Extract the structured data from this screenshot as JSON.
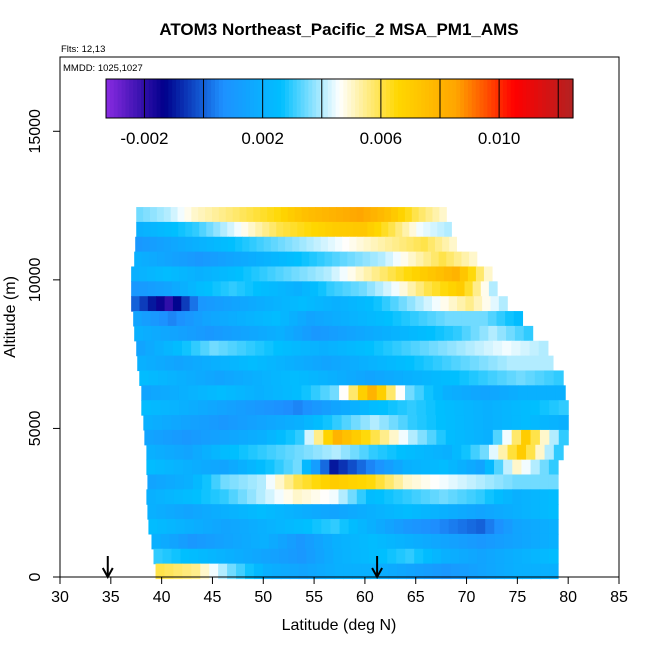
{
  "chart_data": {
    "type": "heatmap",
    "title": "ATOM3 Northeast_Pacific_2 MSA_PM1_AMS",
    "subtitle_flights": "Flts: 12,13",
    "subtitle_dates": "MMDD: 1025,1027",
    "xlabel": "Latitude (deg N)",
    "ylabel": "Altitude (m)",
    "xlim": [
      30,
      85
    ],
    "ylim": [
      0,
      17500
    ],
    "x_ticks": [
      30,
      35,
      40,
      45,
      50,
      55,
      60,
      65,
      70,
      75,
      80,
      85
    ],
    "y_ticks": [
      0,
      5000,
      10000,
      15000
    ],
    "x_tick_labels": [
      "30",
      "35",
      "40",
      "45",
      "50",
      "55",
      "60",
      "65",
      "70",
      "75",
      "80",
      "85"
    ],
    "y_tick_labels": [
      "0",
      "5000",
      "10000",
      "15000"
    ],
    "colorbar": {
      "range": [
        -0.0033,
        0.0125
      ],
      "ticks": [
        -0.002,
        0.002,
        0.006,
        0.01
      ],
      "tick_labels": [
        "-0.002",
        "0.002",
        "0.006",
        "0.010"
      ],
      "colors": [
        "#8a2be2",
        "#00008b",
        "#1e90ff",
        "#00bfff",
        "#ffffff",
        "#ffd700",
        "#ffa500",
        "#ff0000",
        "#b22222"
      ]
    },
    "flight_track_markers": [
      {
        "name": "arrow-1",
        "latitude": 34.7
      },
      {
        "name": "arrow-2",
        "latitude": 61.2
      }
    ],
    "series": [
      {
        "altitude": 12200,
        "lat_min": 37.5,
        "lat_max": 68.0,
        "values": [
          0.0035,
          0.004,
          0.005,
          0.0055,
          0.006,
          0.0065,
          0.0075,
          0.008,
          0.0085,
          0.0075,
          0.006,
          0.005
        ]
      },
      {
        "altitude": 11700,
        "lat_min": 37.5,
        "lat_max": 68.5,
        "values": [
          0.002,
          0.0025,
          0.003,
          0.004,
          0.005,
          0.006,
          0.0065,
          0.007,
          0.0072,
          0.006,
          0.0045,
          0.004
        ]
      },
      {
        "altitude": 11200,
        "lat_min": 37.4,
        "lat_max": 69.0,
        "values": [
          0.001,
          0.0015,
          0.002,
          0.0025,
          0.003,
          0.0035,
          0.004,
          0.0045,
          0.005,
          0.0055,
          0.006,
          0.005
        ]
      },
      {
        "altitude": 10700,
        "lat_min": 37.3,
        "lat_max": 71.0,
        "values": [
          0.002,
          0.0015,
          0.001,
          0.0015,
          0.002,
          0.0025,
          0.003,
          0.0035,
          0.004,
          0.005,
          0.006,
          0.005
        ]
      },
      {
        "altitude": 10200,
        "lat_min": 37.0,
        "lat_max": 72.5,
        "values": [
          0.002,
          0.0025,
          0.002,
          0.0025,
          0.003,
          0.0035,
          0.004,
          0.005,
          0.006,
          0.007,
          0.008,
          0.005
        ]
      },
      {
        "altitude": 9700,
        "lat_min": 37.0,
        "lat_max": 73.0,
        "values": [
          0.001,
          0.0015,
          0.0025,
          0.003,
          0.0025,
          0.002,
          0.003,
          0.0035,
          0.0045,
          0.006,
          0.007,
          0.004
        ]
      },
      {
        "altitude": 9200,
        "lat_min": 37.0,
        "lat_max": 74.0,
        "values": [
          0.0,
          -0.002,
          0.001,
          0.0015,
          0.002,
          0.0025,
          0.002,
          0.0025,
          0.0035,
          0.0045,
          0.0055,
          0.004
        ]
      },
      {
        "altitude": 8700,
        "lat_min": 37.2,
        "lat_max": 75.5,
        "values": [
          0.0015,
          0.0005,
          0.0015,
          0.002,
          0.0025,
          0.0015,
          0.002,
          0.0025,
          0.003,
          0.0035,
          0.0035,
          0.0025
        ]
      },
      {
        "altitude": 8200,
        "lat_min": 37.3,
        "lat_max": 76.5,
        "values": [
          0.002,
          0.0015,
          0.001,
          0.0015,
          0.002,
          0.001,
          0.0015,
          0.002,
          0.0025,
          0.003,
          0.004,
          0.003
        ]
      },
      {
        "altitude": 7700,
        "lat_min": 37.5,
        "lat_max": 78.0,
        "values": [
          0.0015,
          0.0025,
          0.0035,
          0.003,
          0.0025,
          0.002,
          0.0025,
          0.003,
          0.0035,
          0.004,
          0.0045,
          0.004
        ]
      },
      {
        "altitude": 7200,
        "lat_min": 37.6,
        "lat_max": 78.5,
        "values": [
          0.002,
          0.0015,
          0.002,
          0.0025,
          0.002,
          0.0015,
          0.002,
          0.0025,
          0.003,
          0.0035,
          0.004,
          0.004
        ]
      },
      {
        "altitude": 6700,
        "lat_min": 37.8,
        "lat_max": 79.5,
        "values": [
          0.0025,
          0.002,
          0.0015,
          0.002,
          0.0025,
          0.002,
          0.0015,
          0.002,
          0.0025,
          0.003,
          0.0035,
          0.003
        ]
      },
      {
        "altitude": 6200,
        "lat_min": 38.0,
        "lat_max": 79.7,
        "values": [
          0.0015,
          0.002,
          0.0025,
          0.002,
          0.0025,
          0.0035,
          0.008,
          0.0035,
          0.002,
          0.0015,
          0.002,
          0.002
        ]
      },
      {
        "altitude": 5700,
        "lat_min": 38.0,
        "lat_max": 80.0,
        "values": [
          0.0025,
          0.002,
          0.0015,
          0.001,
          0.0005,
          0.0015,
          0.0025,
          0.003,
          0.0025,
          0.002,
          0.0025,
          0.003
        ]
      },
      {
        "altitude": 5200,
        "lat_min": 38.2,
        "lat_max": 80.0,
        "values": [
          0.002,
          0.0015,
          0.001,
          0.0015,
          0.002,
          0.003,
          0.004,
          0.003,
          0.0025,
          0.002,
          0.0025,
          0.002
        ]
      },
      {
        "altitude": 4700,
        "lat_min": 38.3,
        "lat_max": 80.0,
        "values": [
          0.0015,
          0.001,
          0.0015,
          0.002,
          0.003,
          0.008,
          0.006,
          0.004,
          0.0025,
          0.002,
          0.007,
          0.003
        ]
      },
      {
        "altitude": 4200,
        "lat_min": 38.5,
        "lat_max": 79.5,
        "values": [
          0.002,
          0.0015,
          0.0025,
          0.003,
          0.0035,
          0.004,
          0.003,
          0.0025,
          0.002,
          0.0035,
          0.007,
          0.003
        ]
      },
      {
        "altitude": 3700,
        "lat_min": 38.5,
        "lat_max": 79.0,
        "values": [
          0.0025,
          0.002,
          0.0015,
          0.0025,
          0.0035,
          -0.001,
          0.0005,
          0.002,
          0.0025,
          0.0015,
          0.005,
          0.003
        ]
      },
      {
        "altitude": 3200,
        "lat_min": 38.6,
        "lat_max": 79.0,
        "values": [
          0.0015,
          0.002,
          0.0035,
          0.004,
          0.006,
          0.007,
          0.0065,
          0.005,
          0.0045,
          0.004,
          0.0035,
          0.0035
        ]
      },
      {
        "altitude": 2700,
        "lat_min": 38.5,
        "lat_max": 79.0,
        "values": [
          0.002,
          0.0025,
          0.003,
          0.004,
          0.005,
          0.0045,
          0.0025,
          0.003,
          0.0035,
          0.003,
          0.002,
          0.0025
        ]
      },
      {
        "altitude": 2200,
        "lat_min": 38.6,
        "lat_max": 79.0,
        "values": [
          0.002,
          0.0015,
          0.002,
          0.0025,
          0.002,
          0.0015,
          0.002,
          0.0025,
          0.002,
          0.0015,
          0.002,
          0.0025
        ]
      },
      {
        "altitude": 1700,
        "lat_min": 38.7,
        "lat_max": 79.0,
        "values": [
          0.0025,
          0.002,
          0.0015,
          0.002,
          0.0025,
          0.003,
          0.002,
          0.001,
          0.0005,
          0.0,
          0.0015,
          0.002
        ]
      },
      {
        "altitude": 1200,
        "lat_min": 39.0,
        "lat_max": 79.0,
        "values": [
          0.002,
          0.001,
          0.0015,
          0.002,
          0.001,
          0.002,
          0.0025,
          0.002,
          0.0015,
          0.001,
          0.0015,
          0.002
        ]
      },
      {
        "altitude": 700,
        "lat_min": 39.2,
        "lat_max": 79.0,
        "values": [
          0.003,
          0.0025,
          0.002,
          0.0015,
          0.001,
          0.002,
          0.0025,
          0.003,
          0.002,
          0.0015,
          0.002,
          0.0025
        ]
      },
      {
        "altitude": 200,
        "lat_min": 39.4,
        "lat_max": 79.0,
        "values": [
          0.006,
          0.0055,
          0.0035,
          0.002,
          0.0015,
          0.002,
          0.002,
          0.0015,
          0.001,
          0.0015,
          0.002,
          0.002
        ]
      }
    ]
  }
}
